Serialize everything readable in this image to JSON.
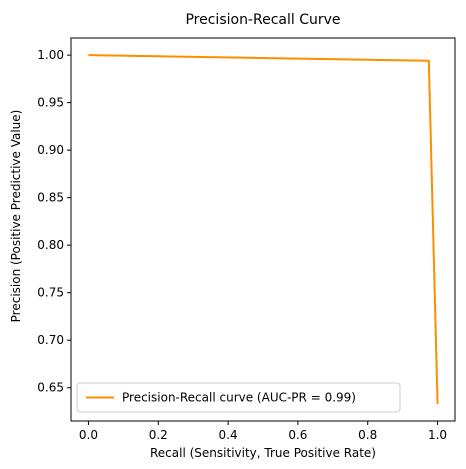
{
  "chart_data": {
    "type": "line",
    "title": "Precision-Recall Curve",
    "xlabel": "Recall (Sensitivity, True Positive Rate)",
    "ylabel": "Precision (Positive Predictive Value)",
    "xlim": [
      -0.05,
      1.05
    ],
    "ylim": [
      0.615,
      1.018
    ],
    "xticks": [
      0.0,
      0.2,
      0.4,
      0.6,
      0.8,
      1.0
    ],
    "xtick_labels": [
      "0.0",
      "0.2",
      "0.4",
      "0.6",
      "0.8",
      "1.0"
    ],
    "yticks": [
      0.65,
      0.7,
      0.75,
      0.8,
      0.85,
      0.9,
      0.95,
      1.0
    ],
    "ytick_labels": [
      "0.65",
      "0.70",
      "0.75",
      "0.80",
      "0.85",
      "0.90",
      "0.95",
      "1.00"
    ],
    "grid": false,
    "legend": {
      "position": "lower-left"
    },
    "series": [
      {
        "name": "Precision-Recall curve (AUC-PR = 0.99)",
        "color": "#ff8c00",
        "x": [
          0.0,
          0.975,
          1.0
        ],
        "y": [
          1.0,
          0.994,
          0.633
        ]
      }
    ]
  }
}
